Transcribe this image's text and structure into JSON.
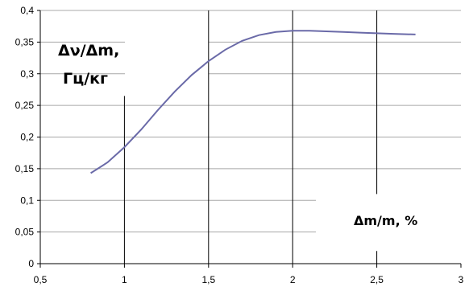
{
  "chart_data": {
    "type": "line",
    "title": "",
    "ylabel_lines": [
      "Δν/Δm,",
      "Гц/кг"
    ],
    "xlabel": "Δm/m, %",
    "xlim": [
      0.5,
      3
    ],
    "ylim": [
      0,
      0.4
    ],
    "x_ticks": [
      0.5,
      1,
      1.5,
      2,
      2.5,
      3
    ],
    "x_tick_labels": [
      "0,5",
      "1",
      "1,5",
      "2",
      "2,5",
      "3"
    ],
    "y_ticks": [
      0,
      0.05,
      0.1,
      0.15,
      0.2,
      0.25,
      0.3,
      0.35,
      0.4
    ],
    "y_tick_labels": [
      "0",
      "0,05",
      "0,1",
      "0,15",
      "0,2",
      "0,25",
      "0,3",
      "0,35",
      "0,4"
    ],
    "grid": true,
    "line_color": "#6a6aa8",
    "series": [
      {
        "x": [
          0.8,
          0.9,
          1.0,
          1.1,
          1.2,
          1.3,
          1.4,
          1.5,
          1.6,
          1.7,
          1.8,
          1.9,
          2.0,
          2.1,
          2.2,
          2.3,
          2.4,
          2.5,
          2.6,
          2.73
        ],
        "y": [
          0.143,
          0.16,
          0.184,
          0.212,
          0.243,
          0.272,
          0.298,
          0.32,
          0.338,
          0.352,
          0.361,
          0.366,
          0.368,
          0.368,
          0.367,
          0.366,
          0.365,
          0.364,
          0.363,
          0.362
        ]
      }
    ]
  }
}
